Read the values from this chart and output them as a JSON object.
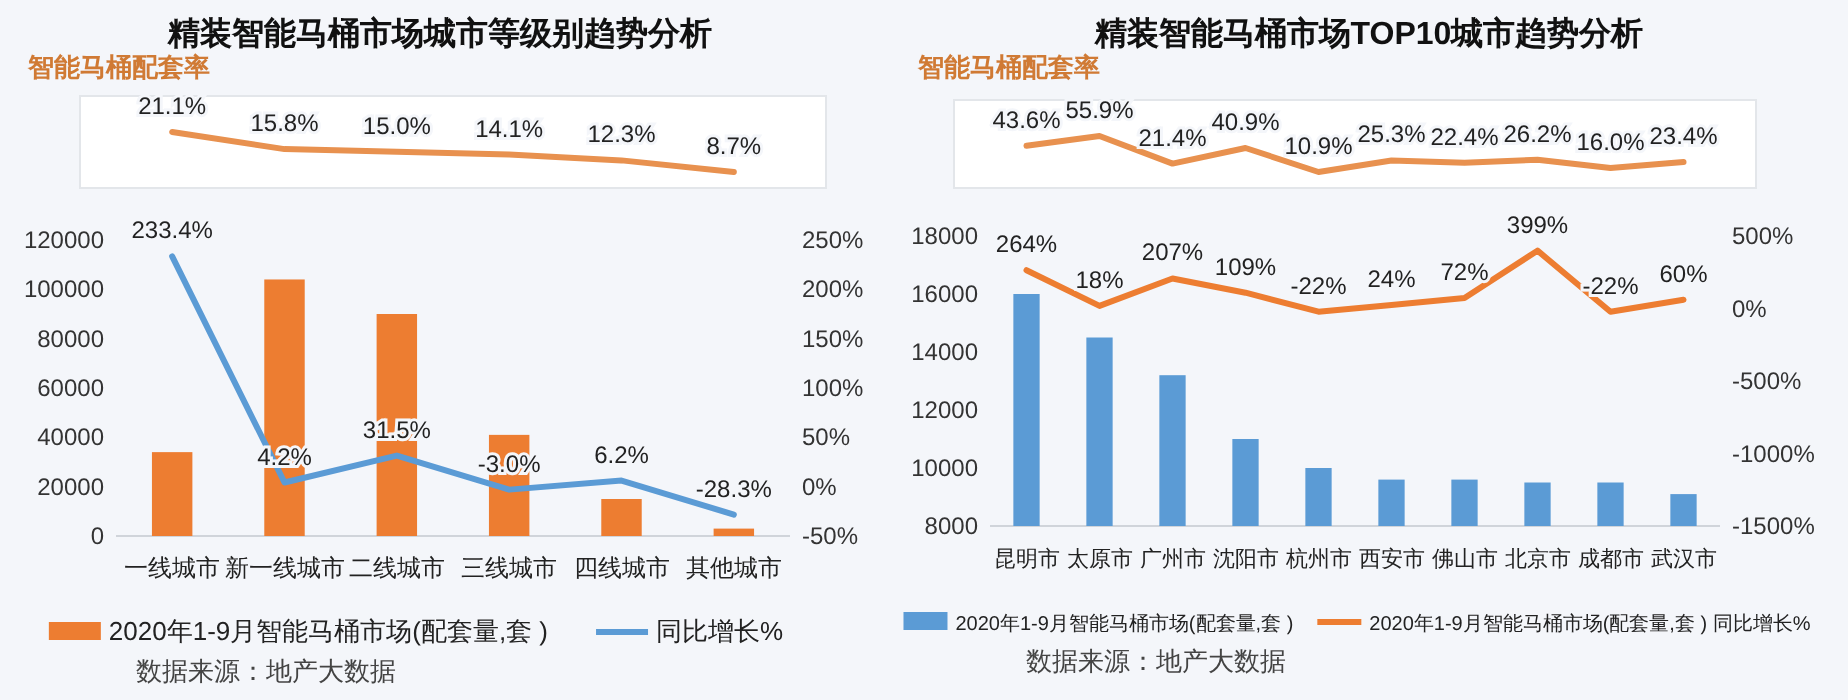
{
  "chart_data": [
    {
      "type": "line",
      "title": "精装智能马桶市场城市等级别趋势分析",
      "subtitle": "智能马桶配套率",
      "categories": [
        null,
        null,
        null,
        null,
        null,
        null
      ],
      "series": [
        {
          "color": "#e8914f",
          "values": [
            21.1,
            15.8,
            15.0,
            14.1,
            12.3,
            8.7
          ],
          "value_labels": [
            "21.1%",
            "15.8%",
            "15.0%",
            "14.1%",
            "12.3%",
            "8.7%"
          ]
        }
      ]
    },
    {
      "type": "bar",
      "categories": [
        "一线城市",
        "新一线城市",
        "二线城市",
        "三线城市",
        "四线城市",
        "其他城市"
      ],
      "ylim": [
        0,
        120000
      ],
      "yticks": [
        0,
        20000,
        40000,
        60000,
        80000,
        100000,
        120000
      ],
      "y2lim": [
        -50,
        250
      ],
      "y2ticks": [
        {
          "value": -50,
          "label": "-50%"
        },
        {
          "value": 0,
          "label": "0%"
        },
        {
          "value": 50,
          "label": "50%"
        },
        {
          "value": 100,
          "label": "100%"
        },
        {
          "value": 150,
          "label": "150%"
        },
        {
          "value": 200,
          "label": "200%"
        },
        {
          "value": 250,
          "label": "250%"
        }
      ],
      "legend": "bottom",
      "annotations": [
        "数据来源：地产大数据"
      ],
      "series": [
        {
          "name": "2020年1-9月智能马桶市场(配套量,套 )",
          "color": "#ed7d31",
          "values": [
            34000,
            104000,
            90000,
            41000,
            15000,
            3000
          ]
        },
        {
          "type": "line",
          "axis": "y2",
          "name": "同比增长%",
          "color": "#5b9bd5",
          "values": [
            233.4,
            4.2,
            31.5,
            -3.0,
            6.2,
            -28.3
          ],
          "value_labels": [
            "233.4%",
            "4.2%",
            "31.5%",
            "-3.0%",
            "6.2%",
            "-28.3%"
          ]
        }
      ]
    },
    {
      "type": "line",
      "title": "精装智能马桶市场TOP10城市趋势分析",
      "subtitle": "智能马桶配套率",
      "categories": [
        null,
        null,
        null,
        null,
        null,
        null,
        null,
        null,
        null,
        null
      ],
      "series": [
        {
          "color": "#e8914f",
          "values": [
            43.6,
            55.9,
            21.4,
            40.9,
            10.9,
            25.3,
            22.4,
            26.2,
            16.0,
            23.4
          ],
          "value_labels": [
            "43.6%",
            "55.9%",
            "21.4%",
            "40.9%",
            "10.9%",
            "25.3%",
            "22.4%",
            "26.2%",
            "16.0%",
            "23.4%"
          ]
        }
      ]
    },
    {
      "type": "bar",
      "categories": [
        "昆明市",
        "太原市",
        "广州市",
        "沈阳市",
        "杭州市",
        "西安市",
        "佛山市",
        "北京市",
        "成都市",
        "武汉市"
      ],
      "ylim": [
        8000,
        18000
      ],
      "yticks": [
        8000,
        10000,
        12000,
        14000,
        16000,
        18000
      ],
      "y2lim": [
        -1500,
        500
      ],
      "y2ticks": [
        {
          "value": -1500,
          "label": "-1500%"
        },
        {
          "value": -1000,
          "label": "-1000%"
        },
        {
          "value": -500,
          "label": "-500%"
        },
        {
          "value": 0,
          "label": "0%"
        },
        {
          "value": 500,
          "label": "500%"
        }
      ],
      "legend": "bottom",
      "annotations": [
        "数据来源：地产大数据"
      ],
      "series": [
        {
          "name": "2020年1-9月智能马桶市场(配套量,套 )",
          "color": "#5b9bd5",
          "values": [
            16000,
            14500,
            13200,
            11000,
            10000,
            9600,
            9600,
            9500,
            9500,
            9100
          ]
        },
        {
          "type": "line",
          "axis": "y2",
          "name": "2020年1-9月智能马桶市场(配套量,套 ) 同比增长%",
          "color": "#ed7d31",
          "values": [
            264,
            18,
            207,
            109,
            -22,
            24,
            72,
            399,
            -22,
            60
          ],
          "value_labels": [
            "264%",
            "18%",
            "207%",
            "109%",
            "-22%",
            "24%",
            "72%",
            "399%",
            "-22%",
            "60%"
          ]
        }
      ]
    }
  ]
}
